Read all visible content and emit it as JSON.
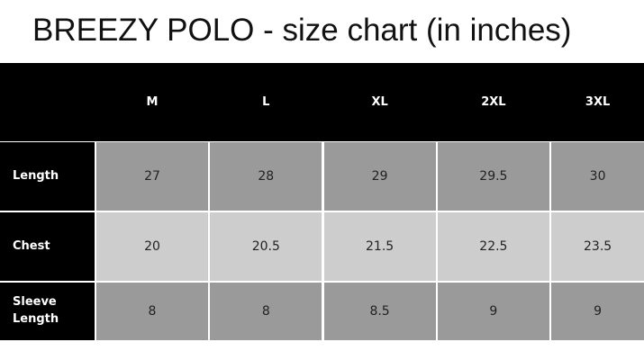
{
  "title": "BREEZY POLO - size chart (in inches)",
  "table": {
    "columns": [
      "M",
      "L",
      "XL",
      "2XL",
      "3XL"
    ],
    "rows": [
      {
        "label": "Length",
        "values": [
          27,
          28,
          29,
          29.5,
          30
        ]
      },
      {
        "label": "Chest",
        "values": [
          20,
          20.5,
          21.5,
          22.5,
          23.5
        ]
      },
      {
        "label": "Sleeve Length",
        "values": [
          8,
          8,
          8.5,
          9,
          9
        ]
      }
    ]
  }
}
